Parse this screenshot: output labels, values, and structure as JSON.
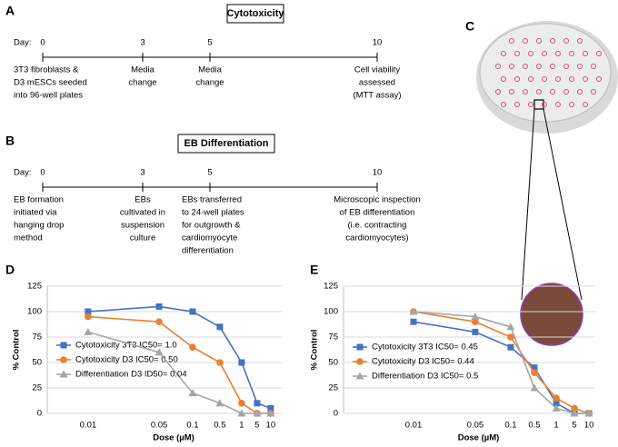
{
  "panel_a": {
    "label": "A",
    "title": "Cytotoxicity",
    "day_label": "Day:",
    "days": [
      "0",
      "3",
      "5",
      "10"
    ],
    "notes": [
      [
        "3T3 fibroblasts &",
        "D3 mESCs seeded",
        "into 96-well plates"
      ],
      [
        "Media",
        "change"
      ],
      [
        "Media",
        "change"
      ],
      [
        "Cell viability",
        "assessed",
        "(MTT assay)"
      ]
    ]
  },
  "panel_b": {
    "label": "B",
    "title": "EB Differentiation",
    "day_label": "Day:",
    "days": [
      "0",
      "3",
      "5",
      "10"
    ],
    "notes": [
      [
        "EB formation",
        "initiated via",
        "hanging drop",
        "method"
      ],
      [
        "EBs",
        "cultivated in",
        "suspension",
        "culture"
      ],
      [
        "EBs transferred",
        "to 24-well plates",
        "for outgrowth &",
        "cardiomyocyte",
        "differentiation"
      ],
      [
        "Microscopic inspection",
        "of EB differentiation",
        "(i.e. contracting",
        "cardiomyocytes)"
      ]
    ]
  },
  "panel_c": {
    "label": "C"
  },
  "chart_data": [
    {
      "type": "line",
      "label": "D",
      "xlabel": "Dose (µM)",
      "ylabel": "% Control",
      "categories": [
        "0.01",
        "0.05",
        "0.1",
        "0.5",
        "1",
        "5",
        "10"
      ],
      "ylim": [
        0,
        125
      ],
      "yticks": [
        0,
        25,
        50,
        75,
        100,
        125
      ],
      "grid": true,
      "series": [
        {
          "name": "Cytotoxicity 3T3  IC50= 1.0",
          "color": "#4472c4",
          "marker": "square",
          "values": [
            100,
            105,
            100,
            85,
            50,
            10,
            5
          ]
        },
        {
          "name": "Cytotoxicity D3  IC50= 0.50",
          "color": "#ed7d31",
          "marker": "circle",
          "values": [
            95,
            90,
            65,
            50,
            10,
            0,
            0
          ]
        },
        {
          "name": "Differentiation D3  ID50= 0.04",
          "color": "#a5a5a5",
          "marker": "triangle",
          "values": [
            80,
            60,
            20,
            10,
            0,
            0,
            0
          ]
        }
      ]
    },
    {
      "type": "line",
      "label": "E",
      "xlabel": "Dose (µM)",
      "ylabel": "% Control",
      "categories": [
        "0.01",
        "0.05",
        "0.1",
        "0.5",
        "1",
        "5",
        "10"
      ],
      "ylim": [
        0,
        125
      ],
      "yticks": [
        0,
        25,
        50,
        75,
        100,
        125
      ],
      "grid": true,
      "series": [
        {
          "name": "Cytotoxicity 3T3  IC50= 0.45",
          "color": "#4472c4",
          "marker": "square",
          "values": [
            90,
            80,
            65,
            45,
            10,
            0,
            0
          ]
        },
        {
          "name": "Cytotoxicity D3  IC50= 0.44",
          "color": "#ed7d31",
          "marker": "circle",
          "values": [
            100,
            90,
            75,
            40,
            15,
            5,
            0
          ]
        },
        {
          "name": "Differentiation D3  IC50= 0.5",
          "color": "#a5a5a5",
          "marker": "triangle",
          "values": [
            100,
            95,
            85,
            25,
            5,
            0,
            0
          ]
        }
      ]
    }
  ]
}
